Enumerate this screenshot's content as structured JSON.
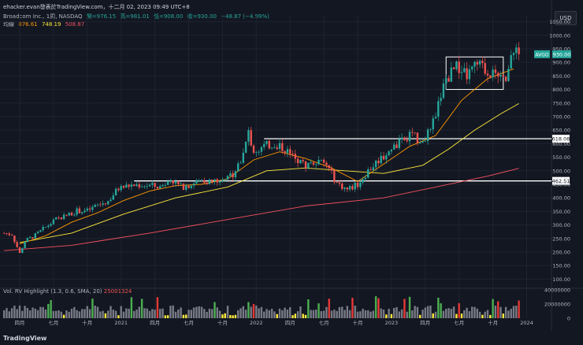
{
  "header": {
    "top_line": "ehacker.evan發表於TradingView.com，十二月 02, 2023 09:49 UTC+8",
    "symbol": "Broadcom Inc., 1周, NASDAQ",
    "open": "開=976.15",
    "high": "高=981.01",
    "low": "低=908.00",
    "close": "收=930.00",
    "change": "−48.87 (−4.99%)",
    "ma_label": "均線",
    "ma_values": [
      "876.61",
      "748.19",
      "508.87"
    ]
  },
  "currency_button": "USD",
  "volume_legend": {
    "label": "Vol. RV Highlight (1.3, 0.6, SMA, 20)",
    "value": "25001324"
  },
  "footer": "TradingView",
  "colors": {
    "up": "#26a69a",
    "down": "#ef5350",
    "ma_fast": "#ff9800",
    "ma_mid": "#ffeb3b",
    "ma_slow": "#f7525f",
    "level": "#ffffff",
    "last_price": "#26a69a",
    "vol_highlight_up": "#4caf50",
    "vol_highlight_down": "#e53935",
    "vol_low": "#ffeb3b",
    "vol_normal": "#787b86"
  },
  "chart_data": {
    "type": "candlestick",
    "symbol": "AVGO",
    "last_price": 930.0,
    "y_axis": {
      "ylim": [
        72,
        1072
      ],
      "ticks": [
        100,
        150,
        200,
        250,
        300,
        350,
        400,
        450,
        500,
        550,
        600,
        650,
        700,
        750,
        800,
        850,
        900,
        950,
        1000,
        1050
      ]
    },
    "x_axis": {
      "ticks": [
        "四月",
        "七月",
        "十月",
        "2021",
        "四月",
        "七月",
        "十月",
        "2022",
        "四月",
        "七月",
        "十月",
        "2023",
        "四月",
        "七月",
        "十月",
        "2024"
      ],
      "tick_positions_weeks": [
        0,
        13,
        26,
        39,
        52,
        65,
        78,
        91,
        104,
        117,
        130,
        143,
        156,
        169,
        182,
        195
      ]
    },
    "horizontal_levels": [
      {
        "label": "618.08",
        "value": 618.08
      },
      {
        "label": "462.51",
        "value": 462.51
      }
    ],
    "highlight_box": {
      "week_start": 164,
      "week_end": 186,
      "price_low": 800,
      "price_high": 920
    },
    "price_series_weekly_close": [
      {
        "week": -6,
        "close": 270
      },
      {
        "week": -3,
        "close": 265
      },
      {
        "week": 0,
        "close": 195
      },
      {
        "week": 2,
        "close": 240
      },
      {
        "week": 6,
        "close": 262
      },
      {
        "week": 10,
        "close": 292
      },
      {
        "week": 14,
        "close": 320
      },
      {
        "week": 18,
        "close": 335
      },
      {
        "week": 22,
        "close": 352
      },
      {
        "week": 26,
        "close": 352
      },
      {
        "week": 30,
        "close": 372
      },
      {
        "week": 34,
        "close": 388
      },
      {
        "week": 38,
        "close": 435
      },
      {
        "week": 42,
        "close": 445
      },
      {
        "week": 46,
        "close": 448
      },
      {
        "week": 50,
        "close": 445
      },
      {
        "week": 54,
        "close": 440
      },
      {
        "week": 58,
        "close": 470
      },
      {
        "week": 62,
        "close": 440
      },
      {
        "week": 66,
        "close": 450
      },
      {
        "week": 70,
        "close": 465
      },
      {
        "week": 74,
        "close": 460
      },
      {
        "week": 78,
        "close": 465
      },
      {
        "week": 82,
        "close": 490
      },
      {
        "week": 86,
        "close": 560
      },
      {
        "week": 88,
        "close": 640
      },
      {
        "week": 90,
        "close": 570
      },
      {
        "week": 94,
        "close": 590
      },
      {
        "week": 98,
        "close": 600
      },
      {
        "week": 102,
        "close": 580
      },
      {
        "week": 106,
        "close": 540
      },
      {
        "week": 110,
        "close": 520
      },
      {
        "week": 114,
        "close": 540
      },
      {
        "week": 118,
        "close": 520
      },
      {
        "week": 122,
        "close": 455
      },
      {
        "week": 126,
        "close": 430
      },
      {
        "week": 130,
        "close": 450
      },
      {
        "week": 134,
        "close": 500
      },
      {
        "week": 138,
        "close": 540
      },
      {
        "week": 142,
        "close": 570
      },
      {
        "week": 146,
        "close": 600
      },
      {
        "week": 150,
        "close": 630
      },
      {
        "week": 154,
        "close": 615
      },
      {
        "week": 158,
        "close": 640
      },
      {
        "week": 162,
        "close": 780
      },
      {
        "week": 164,
        "close": 840
      },
      {
        "week": 168,
        "close": 880
      },
      {
        "week": 172,
        "close": 850
      },
      {
        "week": 176,
        "close": 890
      },
      {
        "week": 180,
        "close": 870
      },
      {
        "week": 184,
        "close": 840
      },
      {
        "week": 187,
        "close": 850
      },
      {
        "week": 190,
        "close": 930
      },
      {
        "week": 191,
        "close": 978
      },
      {
        "week": 192,
        "close": 930
      }
    ],
    "ma_fast_series": [
      {
        "week": 0,
        "value": 230
      },
      {
        "week": 10,
        "value": 260
      },
      {
        "week": 20,
        "value": 310
      },
      {
        "week": 30,
        "value": 345
      },
      {
        "week": 40,
        "value": 390
      },
      {
        "week": 50,
        "value": 425
      },
      {
        "week": 60,
        "value": 445
      },
      {
        "week": 70,
        "value": 450
      },
      {
        "week": 80,
        "value": 470
      },
      {
        "week": 90,
        "value": 540
      },
      {
        "week": 100,
        "value": 570
      },
      {
        "week": 110,
        "value": 545
      },
      {
        "week": 120,
        "value": 510
      },
      {
        "week": 130,
        "value": 460
      },
      {
        "week": 140,
        "value": 525
      },
      {
        "week": 150,
        "value": 590
      },
      {
        "week": 160,
        "value": 630
      },
      {
        "week": 170,
        "value": 760
      },
      {
        "week": 180,
        "value": 840
      },
      {
        "week": 190,
        "value": 876
      }
    ],
    "ma_mid_series": [
      {
        "week": 0,
        "value": 235
      },
      {
        "week": 20,
        "value": 270
      },
      {
        "week": 40,
        "value": 340
      },
      {
        "week": 60,
        "value": 400
      },
      {
        "week": 80,
        "value": 440
      },
      {
        "week": 95,
        "value": 500
      },
      {
        "week": 110,
        "value": 510
      },
      {
        "week": 125,
        "value": 500
      },
      {
        "week": 140,
        "value": 490
      },
      {
        "week": 155,
        "value": 520
      },
      {
        "week": 165,
        "value": 580
      },
      {
        "week": 175,
        "value": 650
      },
      {
        "week": 185,
        "value": 710
      },
      {
        "week": 192,
        "value": 748
      }
    ],
    "ma_slow_series": [
      {
        "week": -6,
        "value": 205
      },
      {
        "week": 20,
        "value": 225
      },
      {
        "week": 50,
        "value": 270
      },
      {
        "week": 80,
        "value": 320
      },
      {
        "week": 110,
        "value": 370
      },
      {
        "week": 140,
        "value": 400
      },
      {
        "week": 160,
        "value": 440
      },
      {
        "week": 180,
        "value": 480
      },
      {
        "week": 192,
        "value": 508.87
      }
    ],
    "volume": {
      "ylim": [
        0,
        40000000
      ],
      "ticks": [
        {
          "label": "40000000",
          "value": 40000000
        },
        {
          "label": "20000000",
          "value": 20000000
        },
        {
          "label": "0",
          "value": 0
        }
      ],
      "series_notes": "weekly bars; highlighted spikes near 2020-03, 2022-06, 2023-06 and the latest week",
      "last_value": 25001324
    }
  }
}
